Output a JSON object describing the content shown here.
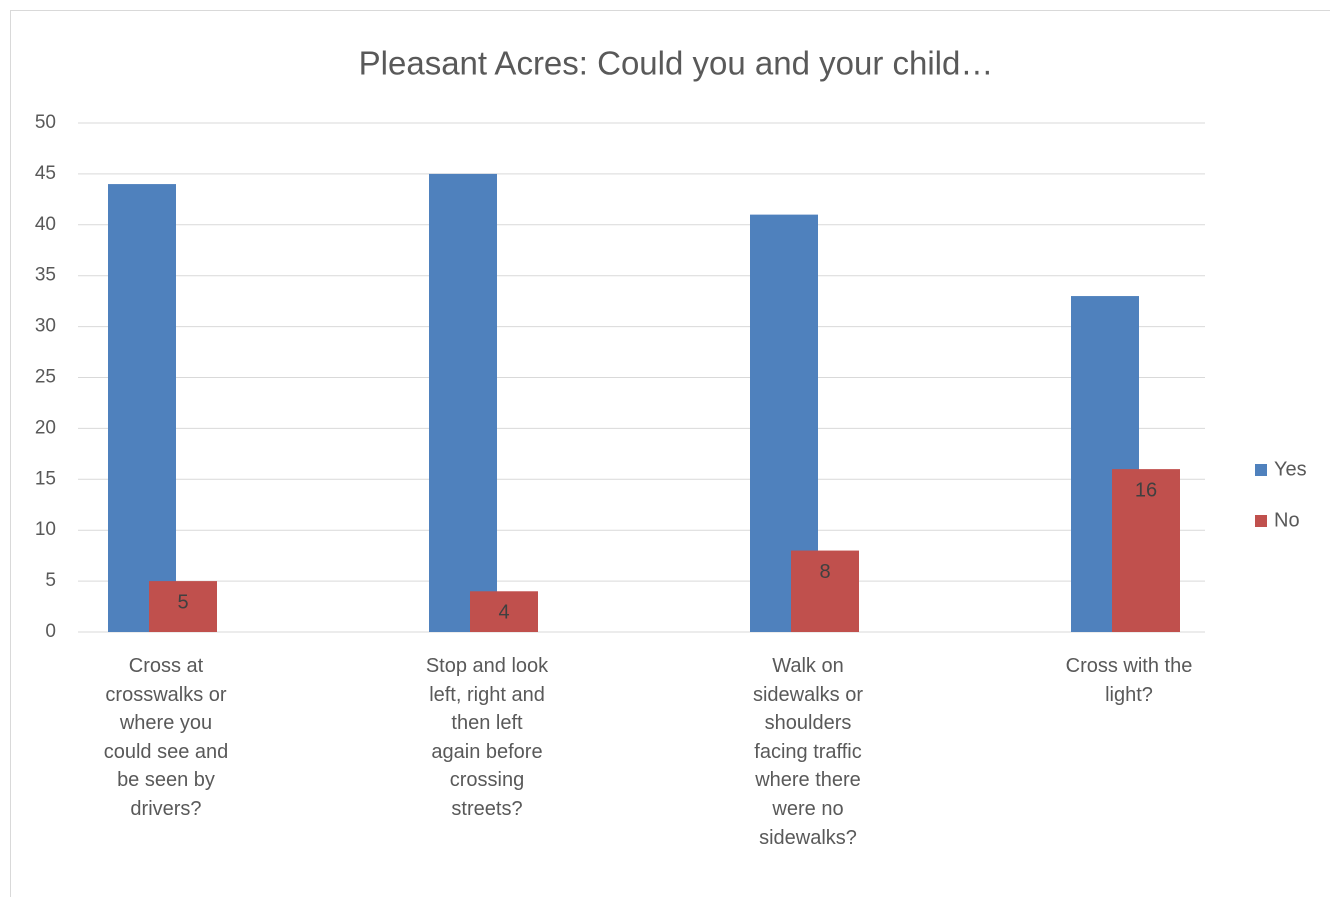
{
  "chart_data": {
    "type": "bar",
    "title": "Pleasant Acres: Could you and your child…",
    "categories": [
      "Cross at\ncrosswalks or\nwhere you\ncould see and\nbe seen by\ndrivers?",
      "Stop and look\nleft, right and\nthen left\nagain before\ncrossing\nstreets?",
      "Walk on\nsidewalks or\nshoulders\nfacing traffic\nwhere there\nwere no\nsidewalks?",
      "Cross with the\nlight?"
    ],
    "series": [
      {
        "name": "Yes",
        "color": "#4f81bd",
        "values": [
          44,
          45,
          41,
          33
        ]
      },
      {
        "name": "No",
        "color": "#c0504d",
        "values": [
          5,
          4,
          8,
          16
        ]
      }
    ],
    "ylim": [
      0,
      50
    ],
    "yticks": [
      0,
      5,
      10,
      15,
      20,
      25,
      30,
      35,
      40,
      45,
      50
    ],
    "grid": true,
    "legend": "right"
  }
}
